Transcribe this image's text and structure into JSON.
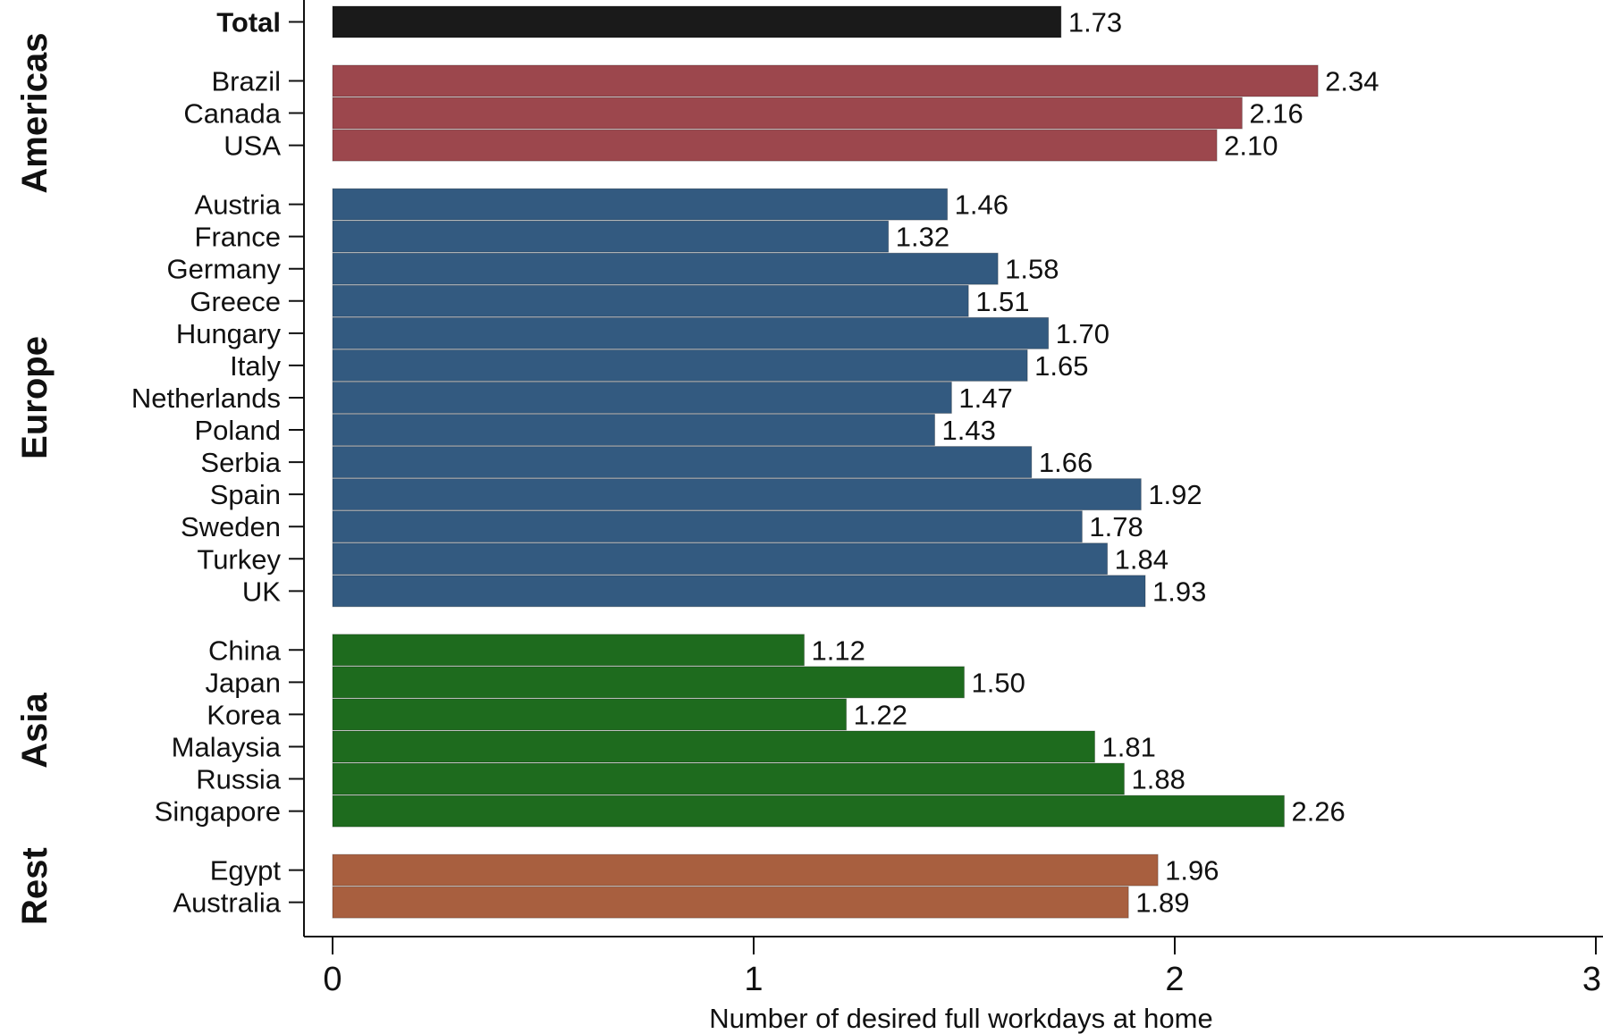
{
  "chart_data": {
    "type": "bar",
    "orientation": "horizontal",
    "xlabel": "Number of desired full workdays at home",
    "xlim": [
      0,
      3
    ],
    "xticks": [
      "0",
      "1",
      "2",
      "3"
    ],
    "grid": false,
    "legend": "none",
    "groups": [
      {
        "name": "",
        "color": "#1a1a1a",
        "bold_labels": true,
        "categories": [
          "Total"
        ],
        "values": [
          1.73
        ],
        "value_labels": [
          "1.73"
        ]
      },
      {
        "name": "Americas",
        "color": "#9c474d",
        "categories": [
          "Brazil",
          "Canada",
          "USA"
        ],
        "values": [
          2.34,
          2.16,
          2.1
        ],
        "value_labels": [
          "2.34",
          "2.16",
          "2.10"
        ]
      },
      {
        "name": "Europe",
        "color": "#335a80",
        "categories": [
          "Austria",
          "France",
          "Germany",
          "Greece",
          "Hungary",
          "Italy",
          "Netherlands",
          "Poland",
          "Serbia",
          "Spain",
          "Sweden",
          "Turkey",
          "UK"
        ],
        "values": [
          1.46,
          1.32,
          1.58,
          1.51,
          1.7,
          1.65,
          1.47,
          1.43,
          1.66,
          1.92,
          1.78,
          1.84,
          1.93
        ],
        "value_labels": [
          "1.46",
          "1.32",
          "1.58",
          "1.51",
          "1.70",
          "1.65",
          "1.47",
          "1.43",
          "1.66",
          "1.92",
          "1.78",
          "1.84",
          "1.93"
        ]
      },
      {
        "name": "Asia",
        "color": "#1e6b1e",
        "categories": [
          "China",
          "Japan",
          "Korea",
          "Malaysia",
          "Russia",
          "Singapore"
        ],
        "values": [
          1.12,
          1.5,
          1.22,
          1.81,
          1.88,
          2.26
        ],
        "value_labels": [
          "1.12",
          "1.50",
          "1.22",
          "1.81",
          "1.88",
          "2.26"
        ]
      },
      {
        "name": "Rest",
        "color": "#a85f3f",
        "categories": [
          "Egypt",
          "Australia"
        ],
        "values": [
          1.96,
          1.89
        ],
        "value_labels": [
          "1.96",
          "1.89"
        ]
      }
    ]
  }
}
